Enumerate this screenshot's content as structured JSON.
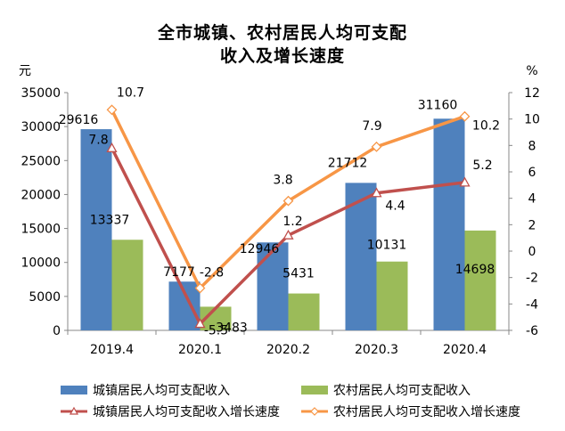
{
  "title_line1": "全市城镇、农村居民人均可支配",
  "title_line2": "收入及增长速度",
  "left_unit": "元",
  "right_unit": "%",
  "colors": {
    "urban_bar": "#4F81BD",
    "rural_bar": "#9BBB59",
    "urban_line": "#C0504D",
    "rural_line": "#F79646"
  },
  "chart_data": {
    "type": "bar",
    "categories": [
      "2019.4",
      "2020.1",
      "2020.2",
      "2020.3",
      "2020.4"
    ],
    "series": [
      {
        "name": "城镇居民人均可支配收入",
        "kind": "bar",
        "axis": "left",
        "values": [
          29616,
          7177,
          12946,
          21712,
          31160
        ]
      },
      {
        "name": "农村居民人均可支配收入",
        "kind": "bar",
        "axis": "left",
        "values": [
          13337,
          3483,
          5431,
          10131,
          14698
        ]
      },
      {
        "name": "城镇居民人均可支配收入增长速度",
        "kind": "line",
        "axis": "right",
        "values": [
          7.8,
          -5.5,
          1.2,
          4.4,
          5.2
        ]
      },
      {
        "name": "农村居民人均可支配收入增长速度",
        "kind": "line",
        "axis": "right",
        "values": [
          10.7,
          -2.8,
          3.8,
          7.9,
          10.2
        ]
      }
    ],
    "y_left": {
      "min": 0,
      "max": 35000,
      "step": 5000,
      "ticks": [
        "0",
        "5000",
        "10000",
        "15000",
        "20000",
        "25000",
        "30000",
        "35000"
      ]
    },
    "y_right": {
      "min": -6,
      "max": 12,
      "step": 2,
      "ticks": [
        "-6",
        "-4",
        "-2",
        "0",
        "2",
        "4",
        "6",
        "8",
        "10",
        "12"
      ]
    },
    "grid": false,
    "legend_position": "bottom"
  }
}
